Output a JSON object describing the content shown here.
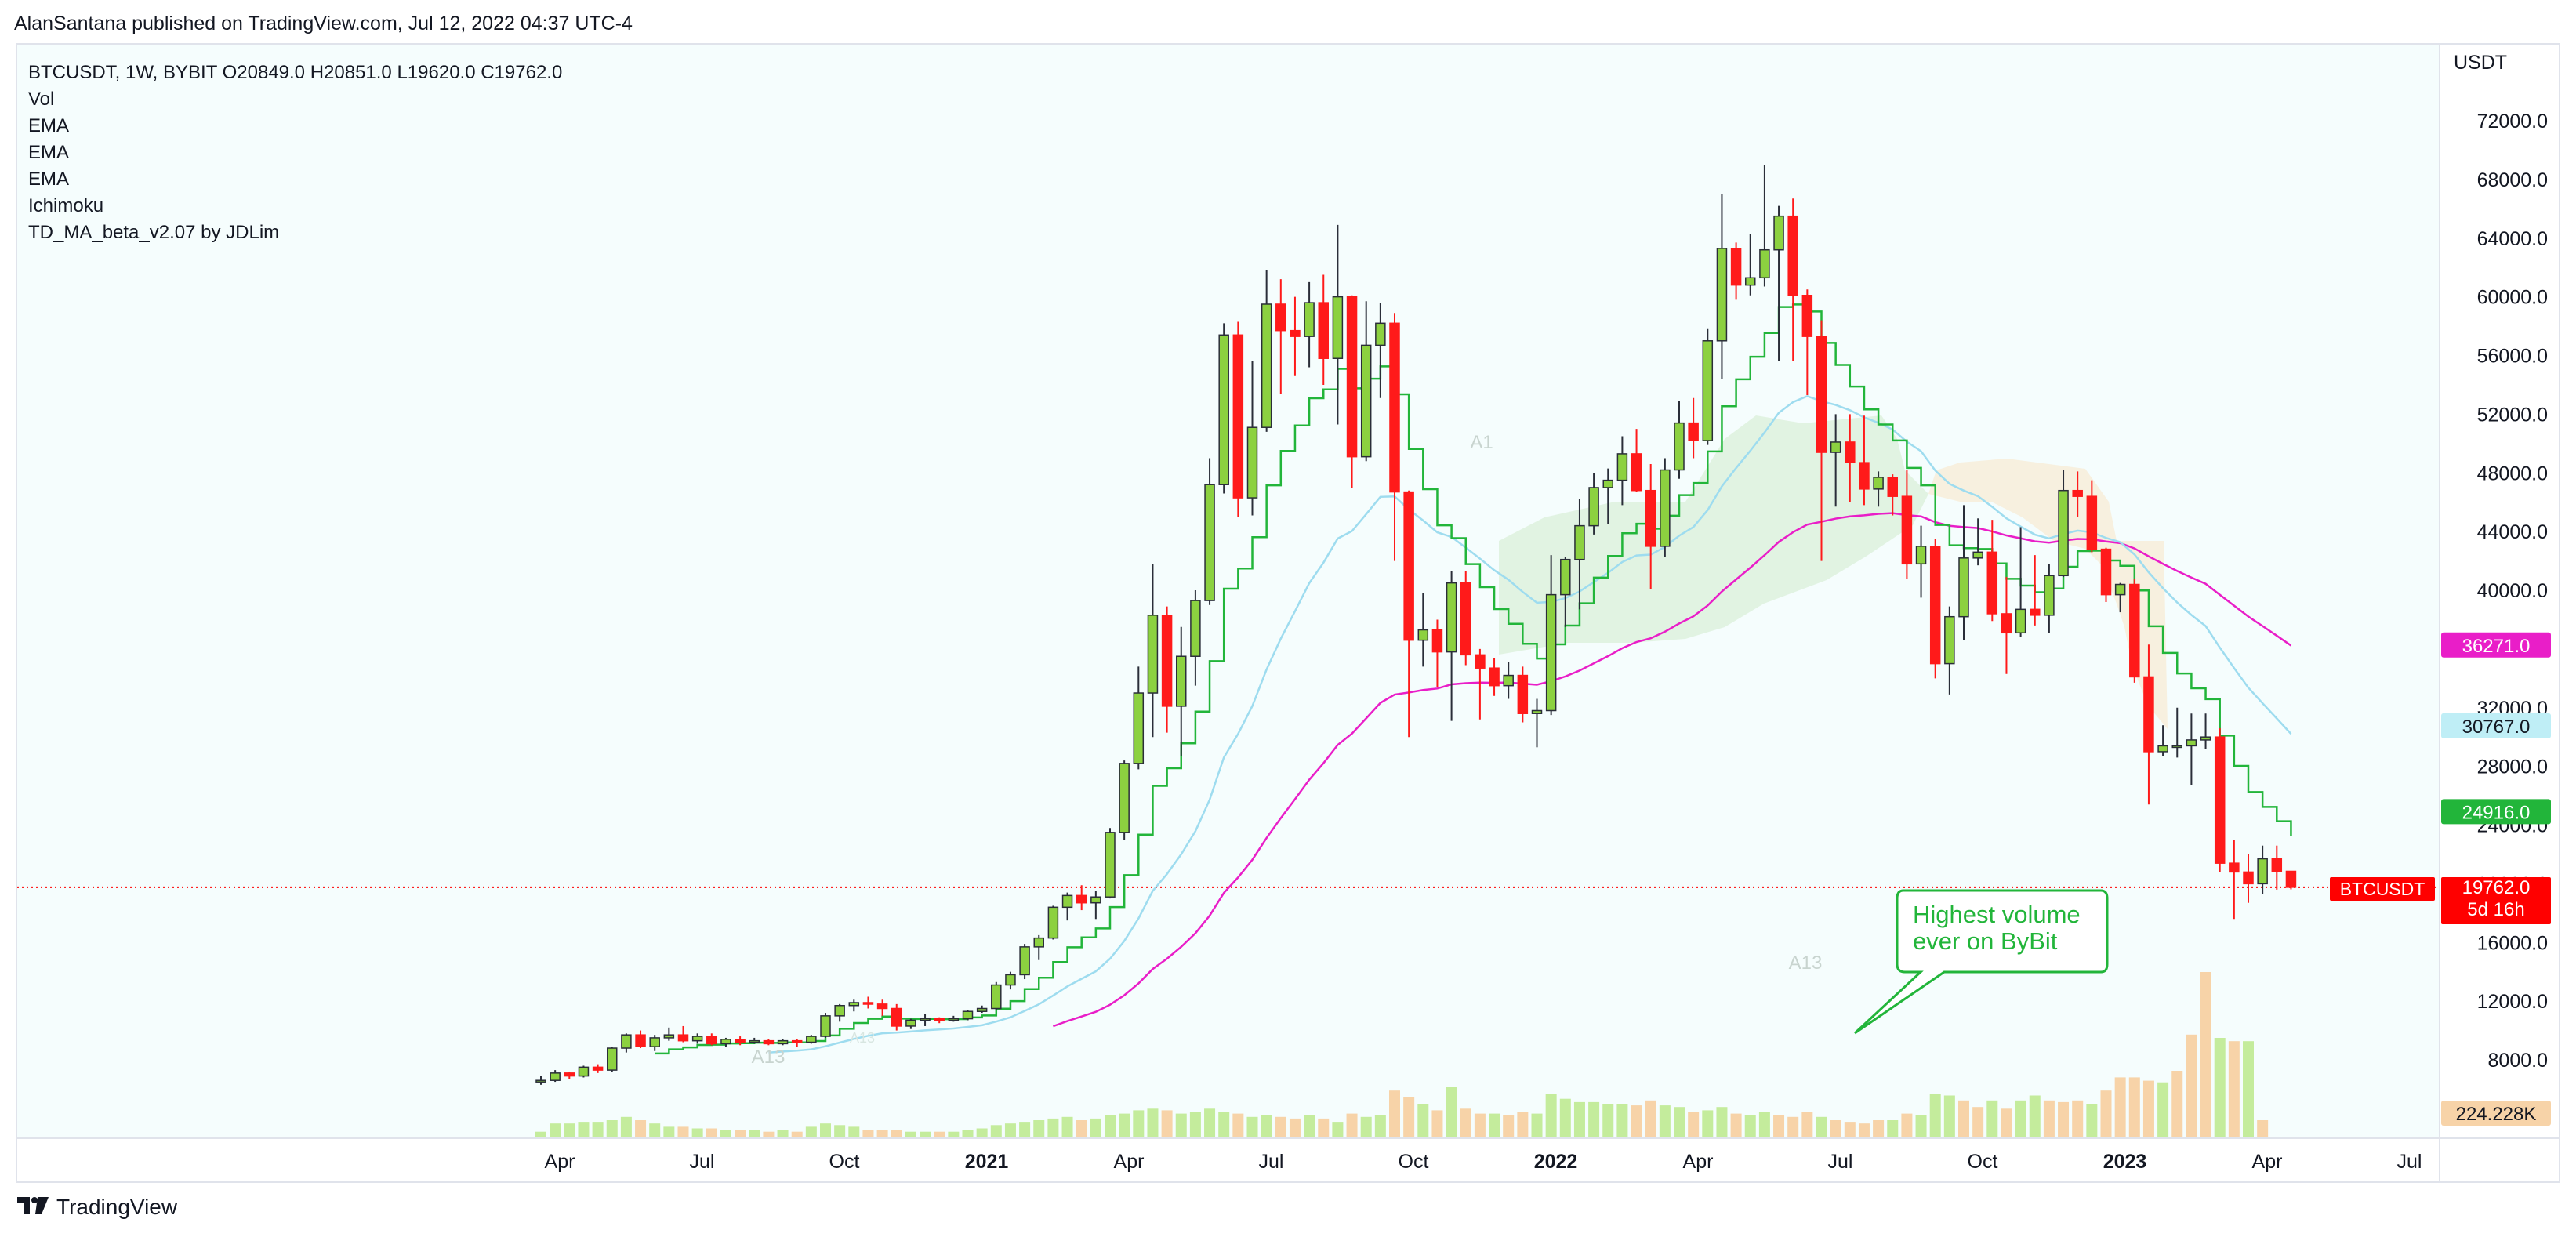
{
  "header": {
    "published_by": "AlanSantana published on TradingView.com, Jul 12, 2022 04:37 UTC-4"
  },
  "legend": {
    "symbol_line": "BTCUSDT, 1W, BYBIT  O20849.0  H20851.0  L19620.0  C19762.0",
    "indicators": [
      "Vol",
      "EMA",
      "EMA",
      "EMA",
      "Ichimoku",
      "TD_MA_beta_v2.07 by JDLim"
    ]
  },
  "footer": {
    "brand": "TradingView",
    "logo_icon": "tradingview-logo-icon"
  },
  "annotation": {
    "callout": "Highest volume ever on ByBit"
  },
  "colors": {
    "up": "#8cd140",
    "down": "#ff1a1a",
    "ema_fast": "#22b53a",
    "ema_mid": "#9edcef",
    "ema_slow": "#e91ec8",
    "vol_up": "#c4ec9c",
    "vol_down": "#f7d3a8",
    "cloud_green": "#dff2df",
    "cloud_tan": "#f7eedb",
    "current_price": "#ff0000"
  },
  "chart_data": {
    "type": "candlestick",
    "symbol": "BTCUSDT",
    "interval": "1W",
    "exchange": "BYBIT",
    "ohlc_last": {
      "open": 20849.0,
      "high": 20851.0,
      "low": 19620.0,
      "close": 19762.0
    },
    "y_axis": {
      "unit_label": "USDT",
      "range": [
        4000,
        74000
      ],
      "ticks": [
        "8000.0",
        "12000.0",
        "16000.0",
        "20000.0",
        "24000.0",
        "28000.0",
        "32000.0",
        "36000.0",
        "40000.0",
        "44000.0",
        "48000.0",
        "52000.0",
        "56000.0",
        "60000.0",
        "64000.0",
        "68000.0",
        "72000.0"
      ]
    },
    "x_axis": {
      "labels": [
        "Apr",
        "Jul",
        "Oct",
        "2021",
        "Apr",
        "Jul",
        "Oct",
        "2022",
        "Apr",
        "Jul",
        "Oct",
        "2023",
        "Apr",
        "Jul"
      ],
      "bold": [
        false,
        false,
        false,
        true,
        false,
        false,
        false,
        true,
        false,
        false,
        false,
        true,
        false,
        false
      ],
      "start": "2020-03",
      "months_per_label": 3
    },
    "candles": [
      [
        6500,
        6900,
        6300,
        6600
      ],
      [
        6600,
        7300,
        6500,
        7100
      ],
      [
        7100,
        7200,
        6700,
        6900
      ],
      [
        6900,
        7600,
        6800,
        7500
      ],
      [
        7500,
        7700,
        7100,
        7300
      ],
      [
        7300,
        8900,
        7200,
        8800
      ],
      [
        8800,
        9800,
        8500,
        9700
      ],
      [
        9700,
        10000,
        8800,
        8900
      ],
      [
        8900,
        9700,
        8600,
        9500
      ],
      [
        9500,
        10200,
        9300,
        9700
      ],
      [
        9700,
        10300,
        9200,
        9300
      ],
      [
        9300,
        9800,
        9100,
        9600
      ],
      [
        9600,
        9800,
        9000,
        9100
      ],
      [
        9100,
        9500,
        8900,
        9400
      ],
      [
        9400,
        9600,
        9000,
        9200
      ],
      [
        9200,
        9500,
        9100,
        9300
      ],
      [
        9300,
        9400,
        9000,
        9100
      ],
      [
        9100,
        9400,
        9000,
        9300
      ],
      [
        9300,
        9400,
        8900,
        9200
      ],
      [
        9200,
        9700,
        9100,
        9600
      ],
      [
        9600,
        11200,
        9500,
        11000
      ],
      [
        11000,
        11800,
        10600,
        11700
      ],
      [
        11700,
        12100,
        11300,
        11900
      ],
      [
        11900,
        12300,
        11500,
        11800
      ],
      [
        11800,
        12100,
        11000,
        11500
      ],
      [
        11500,
        11800,
        10000,
        10300
      ],
      [
        10300,
        10800,
        10100,
        10700
      ],
      [
        10700,
        11100,
        10300,
        10800
      ],
      [
        10800,
        10900,
        10500,
        10700
      ],
      [
        10700,
        11000,
        10600,
        10800
      ],
      [
        10800,
        11400,
        10700,
        11300
      ],
      [
        11300,
        11700,
        11200,
        11500
      ],
      [
        11500,
        13300,
        11400,
        13100
      ],
      [
        13100,
        14000,
        12800,
        13800
      ],
      [
        13800,
        15900,
        13500,
        15700
      ],
      [
        15700,
        16500,
        14800,
        16300
      ],
      [
        16300,
        18500,
        16200,
        18400
      ],
      [
        18400,
        19400,
        17500,
        19200
      ],
      [
        19200,
        19900,
        18200,
        18700
      ],
      [
        18700,
        19500,
        17600,
        19100
      ],
      [
        19100,
        23800,
        19000,
        23500
      ],
      [
        23500,
        28400,
        23000,
        28200
      ],
      [
        28200,
        34800,
        27800,
        33000
      ],
      [
        33000,
        41800,
        30000,
        38300
      ],
      [
        38300,
        38900,
        30300,
        32100
      ],
      [
        32100,
        37500,
        28700,
        35500
      ],
      [
        35500,
        40000,
        33500,
        39300
      ],
      [
        39300,
        49000,
        39000,
        47200
      ],
      [
        47200,
        58200,
        46600,
        57400
      ],
      [
        57400,
        58300,
        45000,
        46300
      ],
      [
        46300,
        55600,
        45100,
        51100
      ],
      [
        51100,
        61800,
        50800,
        59500
      ],
      [
        59500,
        61200,
        53400,
        57700
      ],
      [
        57700,
        60000,
        54600,
        57300
      ],
      [
        57300,
        61000,
        55200,
        59600
      ],
      [
        59600,
        61500,
        54000,
        55800
      ],
      [
        55800,
        64900,
        51300,
        60000
      ],
      [
        60000,
        60100,
        47000,
        49100
      ],
      [
        49100,
        59700,
        48800,
        56700
      ],
      [
        56700,
        59600,
        53100,
        58200
      ],
      [
        58200,
        58900,
        42000,
        46700
      ],
      [
        46700,
        46800,
        30000,
        36600
      ],
      [
        36600,
        39800,
        34800,
        37300
      ],
      [
        37300,
        38000,
        33400,
        35800
      ],
      [
        35800,
        41300,
        31100,
        40500
      ],
      [
        40500,
        41300,
        34900,
        35600
      ],
      [
        35600,
        36000,
        31200,
        34700
      ],
      [
        34700,
        35400,
        32800,
        33500
      ],
      [
        33500,
        35100,
        32600,
        34200
      ],
      [
        34200,
        34800,
        31000,
        31600
      ],
      [
        31600,
        32600,
        29300,
        31800
      ],
      [
        31800,
        42400,
        31500,
        39700
      ],
      [
        39700,
        42300,
        37500,
        42100
      ],
      [
        42100,
        46200,
        38700,
        44400
      ],
      [
        44400,
        48000,
        43800,
        47000
      ],
      [
        47000,
        48300,
        44500,
        47500
      ],
      [
        47500,
        50500,
        45800,
        49300
      ],
      [
        49300,
        51000,
        46700,
        46800
      ],
      [
        46800,
        48600,
        40100,
        43000
      ],
      [
        43000,
        49000,
        42300,
        48200
      ],
      [
        48200,
        52900,
        47600,
        51400
      ],
      [
        51400,
        53100,
        49000,
        50200
      ],
      [
        50200,
        57800,
        49900,
        57000
      ],
      [
        57000,
        67000,
        54400,
        63300
      ],
      [
        63300,
        63700,
        59800,
        60800
      ],
      [
        60800,
        64300,
        60100,
        61300
      ],
      [
        61300,
        69000,
        60700,
        63200
      ],
      [
        63200,
        66200,
        55600,
        65500
      ],
      [
        65500,
        66700,
        55600,
        60100
      ],
      [
        60100,
        60500,
        53300,
        57300
      ],
      [
        57300,
        58400,
        42000,
        49400
      ],
      [
        49400,
        52000,
        45700,
        50100
      ],
      [
        50100,
        52000,
        46000,
        48700
      ],
      [
        48700,
        51900,
        45800,
        46900
      ],
      [
        46900,
        48100,
        45700,
        47700
      ],
      [
        47700,
        47900,
        45100,
        46400
      ],
      [
        46400,
        48200,
        40800,
        41800
      ],
      [
        41800,
        44400,
        39500,
        43000
      ],
      [
        43000,
        43500,
        34000,
        35000
      ],
      [
        35000,
        38900,
        32900,
        38200
      ],
      [
        38200,
        45800,
        36600,
        42200
      ],
      [
        42200,
        44900,
        41700,
        42600
      ],
      [
        42600,
        44800,
        37900,
        38400
      ],
      [
        38400,
        40900,
        34300,
        37100
      ],
      [
        37100,
        44300,
        36800,
        38700
      ],
      [
        38700,
        42400,
        37600,
        38300
      ],
      [
        38300,
        41800,
        37100,
        41000
      ],
      [
        41000,
        48200,
        40900,
        46800
      ],
      [
        46800,
        48100,
        45000,
        46400
      ],
      [
        46400,
        47500,
        42600,
        42800
      ],
      [
        42800,
        42900,
        39200,
        39700
      ],
      [
        39700,
        40500,
        38500,
        40400
      ],
      [
        40400,
        40800,
        33700,
        34100
      ],
      [
        34100,
        36300,
        25400,
        29000
      ],
      [
        29000,
        30800,
        28700,
        29400
      ],
      [
        29400,
        32000,
        28600,
        29400
      ],
      [
        29400,
        31600,
        26700,
        29800
      ],
      [
        29800,
        31600,
        29200,
        30000
      ],
      [
        30000,
        30600,
        20800,
        21400
      ],
      [
        21400,
        23000,
        17600,
        20800
      ],
      [
        20800,
        22000,
        18700,
        20000
      ],
      [
        20000,
        22600,
        19300,
        21700
      ],
      [
        21700,
        22600,
        19600,
        20849
      ],
      [
        20849,
        20851,
        19620,
        19762
      ]
    ],
    "volume": [
      {
        "t": "up",
        "h": 0.03
      },
      {
        "t": "up",
        "h": 0.08
      },
      {
        "t": "up",
        "h": 0.08
      },
      {
        "t": "up",
        "h": 0.09
      },
      {
        "t": "up",
        "h": 0.09
      },
      {
        "t": "up",
        "h": 0.1
      },
      {
        "t": "up",
        "h": 0.12
      },
      {
        "t": "dn",
        "h": 0.1
      },
      {
        "t": "up",
        "h": 0.08
      },
      {
        "t": "up",
        "h": 0.06
      },
      {
        "t": "dn",
        "h": 0.06
      },
      {
        "t": "up",
        "h": 0.05
      },
      {
        "t": "dn",
        "h": 0.05
      },
      {
        "t": "up",
        "h": 0.04
      },
      {
        "t": "dn",
        "h": 0.04
      },
      {
        "t": "up",
        "h": 0.04
      },
      {
        "t": "dn",
        "h": 0.03
      },
      {
        "t": "up",
        "h": 0.04
      },
      {
        "t": "dn",
        "h": 0.03
      },
      {
        "t": "up",
        "h": 0.06
      },
      {
        "t": "up",
        "h": 0.08
      },
      {
        "t": "up",
        "h": 0.07
      },
      {
        "t": "up",
        "h": 0.06
      },
      {
        "t": "dn",
        "h": 0.04
      },
      {
        "t": "dn",
        "h": 0.04
      },
      {
        "t": "dn",
        "h": 0.04
      },
      {
        "t": "up",
        "h": 0.03
      },
      {
        "t": "up",
        "h": 0.03
      },
      {
        "t": "dn",
        "h": 0.03
      },
      {
        "t": "up",
        "h": 0.03
      },
      {
        "t": "up",
        "h": 0.04
      },
      {
        "t": "up",
        "h": 0.05
      },
      {
        "t": "up",
        "h": 0.07
      },
      {
        "t": "up",
        "h": 0.08
      },
      {
        "t": "up",
        "h": 0.09
      },
      {
        "t": "up",
        "h": 0.1
      },
      {
        "t": "up",
        "h": 0.11
      },
      {
        "t": "up",
        "h": 0.12
      },
      {
        "t": "dn",
        "h": 0.1
      },
      {
        "t": "up",
        "h": 0.11
      },
      {
        "t": "up",
        "h": 0.13
      },
      {
        "t": "up",
        "h": 0.14
      },
      {
        "t": "up",
        "h": 0.16
      },
      {
        "t": "up",
        "h": 0.17
      },
      {
        "t": "dn",
        "h": 0.16
      },
      {
        "t": "up",
        "h": 0.14
      },
      {
        "t": "up",
        "h": 0.15
      },
      {
        "t": "up",
        "h": 0.17
      },
      {
        "t": "up",
        "h": 0.15
      },
      {
        "t": "dn",
        "h": 0.14
      },
      {
        "t": "up",
        "h": 0.12
      },
      {
        "t": "up",
        "h": 0.13
      },
      {
        "t": "dn",
        "h": 0.12
      },
      {
        "t": "dn",
        "h": 0.11
      },
      {
        "t": "up",
        "h": 0.13
      },
      {
        "t": "dn",
        "h": 0.11
      },
      {
        "t": "up",
        "h": 0.09
      },
      {
        "t": "dn",
        "h": 0.14
      },
      {
        "t": "up",
        "h": 0.12
      },
      {
        "t": "up",
        "h": 0.13
      },
      {
        "t": "dn",
        "h": 0.28
      },
      {
        "t": "dn",
        "h": 0.24
      },
      {
        "t": "up",
        "h": 0.2
      },
      {
        "t": "dn",
        "h": 0.16
      },
      {
        "t": "up",
        "h": 0.3
      },
      {
        "t": "dn",
        "h": 0.17
      },
      {
        "t": "dn",
        "h": 0.14
      },
      {
        "t": "up",
        "h": 0.14
      },
      {
        "t": "dn",
        "h": 0.13
      },
      {
        "t": "dn",
        "h": 0.15
      },
      {
        "t": "up",
        "h": 0.14
      },
      {
        "t": "up",
        "h": 0.26
      },
      {
        "t": "up",
        "h": 0.23
      },
      {
        "t": "up",
        "h": 0.21
      },
      {
        "t": "up",
        "h": 0.21
      },
      {
        "t": "up",
        "h": 0.2
      },
      {
        "t": "up",
        "h": 0.2
      },
      {
        "t": "dn",
        "h": 0.19
      },
      {
        "t": "dn",
        "h": 0.22
      },
      {
        "t": "up",
        "h": 0.19
      },
      {
        "t": "up",
        "h": 0.18
      },
      {
        "t": "dn",
        "h": 0.15
      },
      {
        "t": "up",
        "h": 0.16
      },
      {
        "t": "up",
        "h": 0.18
      },
      {
        "t": "dn",
        "h": 0.14
      },
      {
        "t": "up",
        "h": 0.13
      },
      {
        "t": "up",
        "h": 0.15
      },
      {
        "t": "dn",
        "h": 0.13
      },
      {
        "t": "dn",
        "h": 0.12
      },
      {
        "t": "dn",
        "h": 0.15
      },
      {
        "t": "up",
        "h": 0.12
      },
      {
        "t": "dn",
        "h": 0.1
      },
      {
        "t": "dn",
        "h": 0.09
      },
      {
        "t": "dn",
        "h": 0.08
      },
      {
        "t": "dn",
        "h": 0.1
      },
      {
        "t": "up",
        "h": 0.1
      },
      {
        "t": "dn",
        "h": 0.14
      },
      {
        "t": "up",
        "h": 0.13
      },
      {
        "t": "up",
        "h": 0.26
      },
      {
        "t": "up",
        "h": 0.25
      },
      {
        "t": "dn",
        "h": 0.22
      },
      {
        "t": "dn",
        "h": 0.18
      },
      {
        "t": "up",
        "h": 0.22
      },
      {
        "t": "dn",
        "h": 0.17
      },
      {
        "t": "up",
        "h": 0.22
      },
      {
        "t": "up",
        "h": 0.25
      },
      {
        "t": "dn",
        "h": 0.22
      },
      {
        "t": "dn",
        "h": 0.21
      },
      {
        "t": "dn",
        "h": 0.22
      },
      {
        "t": "up",
        "h": 0.2
      },
      {
        "t": "dn",
        "h": 0.28
      },
      {
        "t": "dn",
        "h": 0.36
      },
      {
        "t": "dn",
        "h": 0.36
      },
      {
        "t": "dn",
        "h": 0.34
      },
      {
        "t": "up",
        "h": 0.33
      },
      {
        "t": "dn",
        "h": 0.4
      },
      {
        "t": "dn",
        "h": 0.62
      },
      {
        "t": "dn",
        "h": 1.0
      },
      {
        "t": "up",
        "h": 0.6
      },
      {
        "t": "dn",
        "h": 0.58
      },
      {
        "t": "up",
        "h": 0.58
      },
      {
        "t": "dn",
        "h": 0.1
      }
    ],
    "volume_last_label": "224.228K",
    "current_price": {
      "symbol_label": "BTCUSDT",
      "value_label": "19762.0",
      "countdown": "5d 16h"
    },
    "ema_fast": {
      "value_label": "24916.0"
    },
    "ema_mid": {
      "value_label": "30767.0"
    },
    "ema_slow": {
      "value_label": "36271.0"
    },
    "annotations_text": [
      "A13",
      "A13",
      "A13",
      "A1"
    ]
  }
}
